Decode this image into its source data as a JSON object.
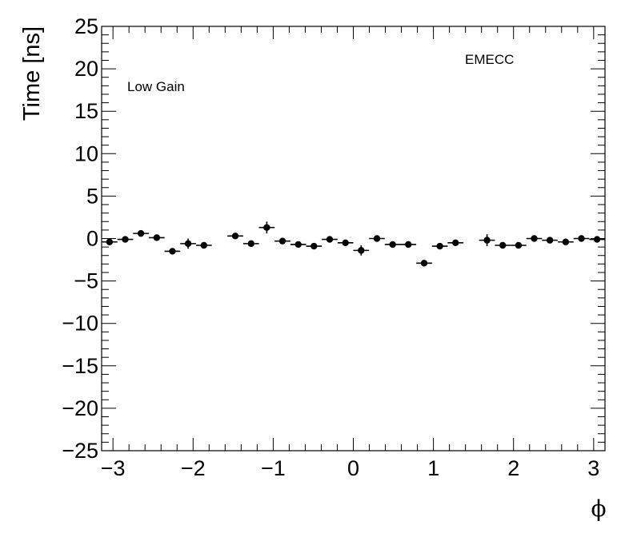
{
  "chart_data": {
    "type": "scatter",
    "title": "",
    "xlabel": "ϕ",
    "ylabel": "Time [ns]",
    "xlim": [
      -3.1416,
      3.1416
    ],
    "ylim": [
      -25,
      25
    ],
    "grid": false,
    "annotations": [
      "Low Gain",
      "EMECC"
    ],
    "x_ticks": [
      {
        "value": -3,
        "label": "−3"
      },
      {
        "value": -2,
        "label": "−2"
      },
      {
        "value": -1,
        "label": "−1"
      },
      {
        "value": 0,
        "label": "0"
      },
      {
        "value": 1,
        "label": "1"
      },
      {
        "value": 2,
        "label": "2"
      },
      {
        "value": 3,
        "label": "3"
      }
    ],
    "y_ticks": [
      {
        "value": 25,
        "label": "25"
      },
      {
        "value": 20,
        "label": "20"
      },
      {
        "value": 15,
        "label": "15"
      },
      {
        "value": 10,
        "label": "10"
      },
      {
        "value": 5,
        "label": "5"
      },
      {
        "value": 0,
        "label": "0"
      },
      {
        "value": -5,
        "label": "−5"
      },
      {
        "value": -10,
        "label": "−10"
      },
      {
        "value": -15,
        "label": "−15"
      },
      {
        "value": -20,
        "label": "−20"
      },
      {
        "value": -25,
        "label": "−25"
      }
    ],
    "bin_width": 0.19635,
    "series": [
      {
        "points": [
          {
            "x": -3.043,
            "y": -0.4,
            "yerr": 0.3
          },
          {
            "x": -2.847,
            "y": -0.1,
            "yerr": 0.3
          },
          {
            "x": -2.651,
            "y": 0.6,
            "yerr": 0.3
          },
          {
            "x": -2.454,
            "y": 0.1,
            "yerr": 0.3
          },
          {
            "x": -2.258,
            "y": -1.5,
            "yerr": 0.3
          },
          {
            "x": -2.062,
            "y": -0.6,
            "yerr": 0.6
          },
          {
            "x": -1.865,
            "y": -0.8,
            "yerr": 0.3
          },
          {
            "x": -1.473,
            "y": 0.3,
            "yerr": 0.3
          },
          {
            "x": -1.276,
            "y": -0.6,
            "yerr": 0.3
          },
          {
            "x": -1.08,
            "y": 1.3,
            "yerr": 0.7
          },
          {
            "x": -0.884,
            "y": -0.3,
            "yerr": 0.3
          },
          {
            "x": -0.687,
            "y": -0.7,
            "yerr": 0.3
          },
          {
            "x": -0.491,
            "y": -0.9,
            "yerr": 0.3
          },
          {
            "x": -0.295,
            "y": -0.1,
            "yerr": 0.3
          },
          {
            "x": -0.098,
            "y": -0.5,
            "yerr": 0.3
          },
          {
            "x": 0.098,
            "y": -1.4,
            "yerr": 0.6
          },
          {
            "x": 0.295,
            "y": 0.0,
            "yerr": 0.3
          },
          {
            "x": 0.491,
            "y": -0.7,
            "yerr": 0.3
          },
          {
            "x": 0.687,
            "y": -0.7,
            "yerr": 0.3
          },
          {
            "x": 0.884,
            "y": -2.9,
            "yerr": 0.3
          },
          {
            "x": 1.08,
            "y": -0.9,
            "yerr": 0.3
          },
          {
            "x": 1.276,
            "y": -0.5,
            "yerr": 0.3
          },
          {
            "x": 1.669,
            "y": -0.2,
            "yerr": 0.7
          },
          {
            "x": 1.865,
            "y": -0.8,
            "yerr": 0.3
          },
          {
            "x": 2.062,
            "y": -0.8,
            "yerr": 0.3
          },
          {
            "x": 2.258,
            "y": 0.0,
            "yerr": 0.3
          },
          {
            "x": 2.454,
            "y": -0.2,
            "yerr": 0.3
          },
          {
            "x": 2.651,
            "y": -0.4,
            "yerr": 0.3
          },
          {
            "x": 2.847,
            "y": 0.0,
            "yerr": 0.3
          },
          {
            "x": 3.043,
            "y": -0.1,
            "yerr": 0.3
          }
        ]
      }
    ]
  }
}
